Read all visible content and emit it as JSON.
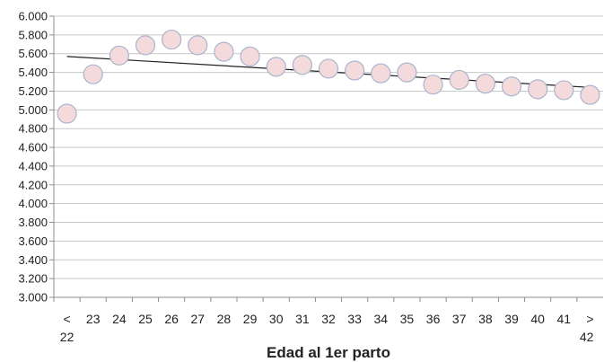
{
  "chart_data": {
    "type": "scatter",
    "title": "",
    "xlabel": "Edad al 1er parto",
    "ylabel": "",
    "ylim": [
      3000,
      6000
    ],
    "ytick_step": 200,
    "yticks": [
      "3.000",
      "3.200",
      "3.400",
      "3.600",
      "3.800",
      "4.000",
      "4.200",
      "4.400",
      "4.600",
      "4.800",
      "5.000",
      "5.200",
      "5.400",
      "5.600",
      "5.800",
      "6.000"
    ],
    "grid": true,
    "legend": "none",
    "categories": [
      {
        "line1": "<",
        "line2": "22"
      },
      {
        "line1": "23",
        "line2": ""
      },
      {
        "line1": "24",
        "line2": ""
      },
      {
        "line1": "25",
        "line2": ""
      },
      {
        "line1": "26",
        "line2": ""
      },
      {
        "line1": "27",
        "line2": ""
      },
      {
        "line1": "28",
        "line2": ""
      },
      {
        "line1": "29",
        "line2": ""
      },
      {
        "line1": "30",
        "line2": ""
      },
      {
        "line1": "31",
        "line2": ""
      },
      {
        "line1": "32",
        "line2": ""
      },
      {
        "line1": "33",
        "line2": ""
      },
      {
        "line1": "34",
        "line2": ""
      },
      {
        "line1": "35",
        "line2": ""
      },
      {
        "line1": "36",
        "line2": ""
      },
      {
        "line1": "37",
        "line2": ""
      },
      {
        "line1": "38",
        "line2": ""
      },
      {
        "line1": "39",
        "line2": ""
      },
      {
        "line1": "40",
        "line2": ""
      },
      {
        "line1": "41",
        "line2": ""
      },
      {
        "line1": ">",
        "line2": "42"
      }
    ],
    "values": [
      4960,
      5380,
      5580,
      5690,
      5750,
      5690,
      5620,
      5570,
      5460,
      5480,
      5440,
      5420,
      5390,
      5400,
      5270,
      5320,
      5280,
      5250,
      5220,
      5210,
      5160
    ],
    "trendline": {
      "type": "linear",
      "start": 5570,
      "end": 5240,
      "color": "#222222"
    },
    "colors": {
      "marker_fill": "#f4dada",
      "marker_stroke": "#a9b4cf",
      "grid": "#c8c8c8",
      "axis": "#8c8c8c"
    }
  }
}
